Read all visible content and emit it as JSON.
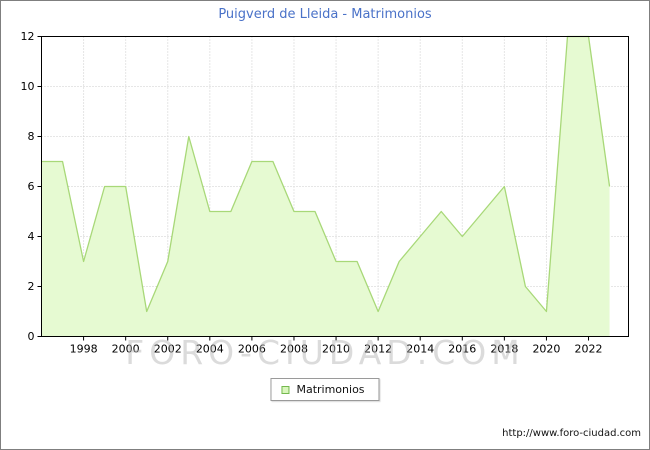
{
  "title": "Puigverd de Lleida - Matrimonios",
  "legend": {
    "label": "Matrimonios"
  },
  "watermark": "FORO-CIUDAD.COM",
  "footer": {
    "url": "http://www.foro-ciudad.com"
  },
  "colors": {
    "title": "#4a72c8",
    "line": "#a8d878",
    "fill": "#e6fad2",
    "grid": "#cccccc",
    "axis": "#000000",
    "text": "#000000",
    "marker_fill": "#d8f6bc",
    "marker_border": "#74b84e"
  },
  "chart_data": {
    "type": "area",
    "title": "Puigverd de Lleida - Matrimonios",
    "xlabel": "",
    "ylabel": "",
    "x": [
      1996,
      1997,
      1998,
      1999,
      2000,
      2001,
      2002,
      2003,
      2004,
      2005,
      2006,
      2007,
      2008,
      2009,
      2010,
      2011,
      2012,
      2013,
      2014,
      2015,
      2016,
      2017,
      2018,
      2019,
      2020,
      2021,
      2022,
      2023
    ],
    "series": [
      {
        "name": "Matrimonios",
        "values": [
          7,
          7,
          3,
          6,
          6,
          1,
          3,
          8,
          5,
          5,
          7,
          7,
          5,
          5,
          3,
          3,
          1,
          3,
          4,
          5,
          4,
          5,
          6,
          2,
          1,
          12,
          12,
          6
        ]
      }
    ],
    "ylim": [
      0,
      12
    ],
    "yticks": [
      0,
      2,
      4,
      6,
      8,
      10,
      12
    ],
    "xticks": [
      1998,
      2000,
      2002,
      2004,
      2006,
      2008,
      2010,
      2012,
      2014,
      2016,
      2018,
      2020,
      2022
    ],
    "grid": true,
    "legend_position": "bottom"
  }
}
